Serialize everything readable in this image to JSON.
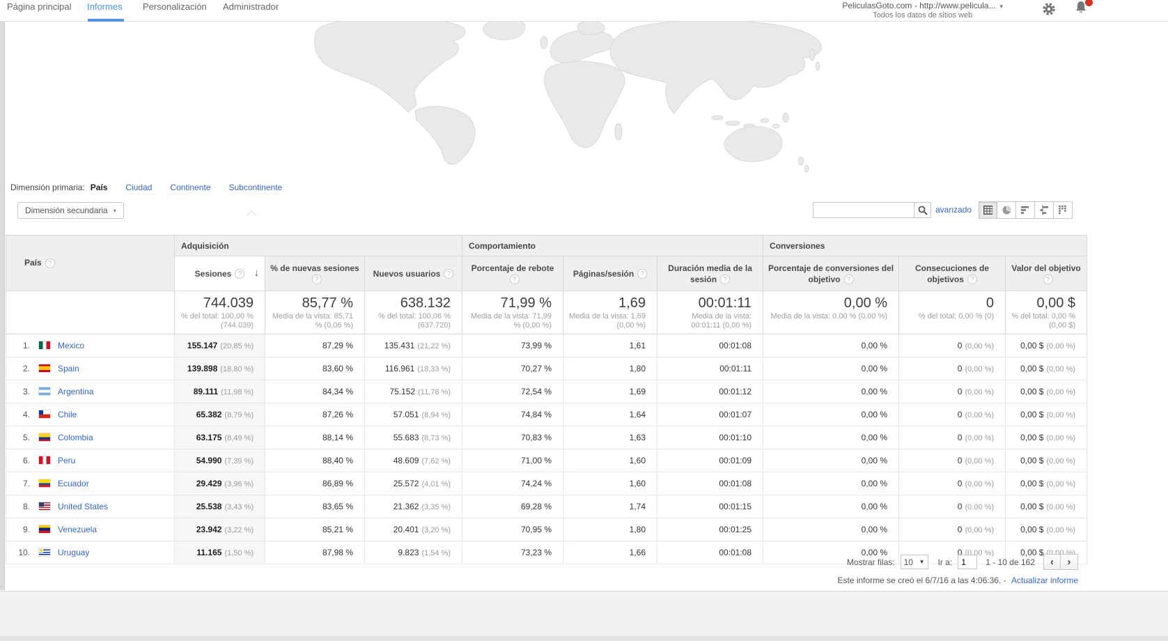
{
  "colors": {
    "accent": "#4d90fe",
    "link": "#3466cc",
    "notification": "#d93025"
  },
  "icons": {
    "help": "?",
    "sort_desc": "↓",
    "caret_down": "▾",
    "select_caret": "▼",
    "prev": "‹",
    "next": "›"
  },
  "nav": {
    "items": [
      {
        "label": "Página principal",
        "active": false
      },
      {
        "label": "Informes",
        "active": true
      },
      {
        "label": "Personalización",
        "active": false
      },
      {
        "label": "Administrador",
        "active": false
      }
    ],
    "account_line1": "PeliculasGoto.com - http://www.pelicula...",
    "account_line2": "Todos los datos de sitios web"
  },
  "dimensions": {
    "primary_label": "Dimensión primaria:",
    "options": [
      {
        "label": "País",
        "selected": true
      },
      {
        "label": "Ciudad",
        "selected": false
      },
      {
        "label": "Continente",
        "selected": false
      },
      {
        "label": "Subcontinente",
        "selected": false
      }
    ],
    "secondary_button": "Dimensión secundaria"
  },
  "toolbar": {
    "advanced_link": "avanzado"
  },
  "table": {
    "groups": [
      "Adquisición",
      "Comportamiento",
      "Conversiones"
    ],
    "columns": [
      "País",
      "Sesiones",
      "% de nuevas sesiones",
      "Nuevos usuarios",
      "Porcentaje de rebote",
      "Páginas/sesión",
      "Duración media de la sesión",
      "Porcentaje de conversiones del objetivo",
      "Consecuciones de objetivos",
      "Valor del objetivo"
    ],
    "totals": {
      "sessions": "744.039",
      "sessions_sub": "% del total: 100,00 % (744.039)",
      "new_sessions": "85,77 %",
      "new_sessions_sub": "Media de la vista: 85,71 % (0,06 %)",
      "new_users": "638.132",
      "new_users_sub": "% del total: 100,06 % (637.720)",
      "bounce": "71,99 %",
      "bounce_sub": "Media de la vista: 71,99 % (0,00 %)",
      "pages": "1,69",
      "pages_sub": "Media de la vista: 1,69 (0,00 %)",
      "duration": "00:01:11",
      "duration_sub": "Media de la vista: 00:01:11 (0,00 %)",
      "conv_rate": "0,00 %",
      "conv_rate_sub": "Media de la vista: 0,00 % (0,00 %)",
      "goals": "0",
      "goals_sub": "% del total: 0,00 % (0)",
      "value": "0,00 $",
      "value_sub": "% del total: 0,00 % (0,00 $)"
    },
    "rows": [
      {
        "rank": "1.",
        "flag": "mx",
        "country": "Mexico",
        "sessions": "155.147",
        "sessions_pct": "(20,85 %)",
        "new_sessions": "87,29 %",
        "new_users": "135.431",
        "new_users_pct": "(21,22 %)",
        "bounce": "73,99 %",
        "pages": "1,61",
        "duration": "00:01:08",
        "conv_rate": "0,00 %",
        "goals": "0",
        "goals_pct": "(0,00 %)",
        "value": "0,00 $",
        "value_pct": "(0,00 %)"
      },
      {
        "rank": "2.",
        "flag": "es",
        "country": "Spain",
        "sessions": "139.898",
        "sessions_pct": "(18,80 %)",
        "new_sessions": "83,60 %",
        "new_users": "116.961",
        "new_users_pct": "(18,33 %)",
        "bounce": "70,27 %",
        "pages": "1,80",
        "duration": "00:01:11",
        "conv_rate": "0,00 %",
        "goals": "0",
        "goals_pct": "(0,00 %)",
        "value": "0,00 $",
        "value_pct": "(0,00 %)"
      },
      {
        "rank": "3.",
        "flag": "ar",
        "country": "Argentina",
        "sessions": "89.111",
        "sessions_pct": "(11,98 %)",
        "new_sessions": "84,34 %",
        "new_users": "75.152",
        "new_users_pct": "(11,78 %)",
        "bounce": "72,54 %",
        "pages": "1,69",
        "duration": "00:01:12",
        "conv_rate": "0,00 %",
        "goals": "0",
        "goals_pct": "(0,00 %)",
        "value": "0,00 $",
        "value_pct": "(0,00 %)"
      },
      {
        "rank": "4.",
        "flag": "cl",
        "country": "Chile",
        "sessions": "65.382",
        "sessions_pct": "(8,79 %)",
        "new_sessions": "87,26 %",
        "new_users": "57.051",
        "new_users_pct": "(8,94 %)",
        "bounce": "74,84 %",
        "pages": "1,64",
        "duration": "00:01:07",
        "conv_rate": "0,00 %",
        "goals": "0",
        "goals_pct": "(0,00 %)",
        "value": "0,00 $",
        "value_pct": "(0,00 %)"
      },
      {
        "rank": "5.",
        "flag": "co",
        "country": "Colombia",
        "sessions": "63.175",
        "sessions_pct": "(8,49 %)",
        "new_sessions": "88,14 %",
        "new_users": "55.683",
        "new_users_pct": "(8,73 %)",
        "bounce": "70,83 %",
        "pages": "1,63",
        "duration": "00:01:10",
        "conv_rate": "0,00 %",
        "goals": "0",
        "goals_pct": "(0,00 %)",
        "value": "0,00 $",
        "value_pct": "(0,00 %)"
      },
      {
        "rank": "6.",
        "flag": "pe",
        "country": "Peru",
        "sessions": "54.990",
        "sessions_pct": "(7,39 %)",
        "new_sessions": "88,40 %",
        "new_users": "48.609",
        "new_users_pct": "(7,62 %)",
        "bounce": "71,00 %",
        "pages": "1,60",
        "duration": "00:01:09",
        "conv_rate": "0,00 %",
        "goals": "0",
        "goals_pct": "(0,00 %)",
        "value": "0,00 $",
        "value_pct": "(0,00 %)"
      },
      {
        "rank": "7.",
        "flag": "ec",
        "country": "Ecuador",
        "sessions": "29.429",
        "sessions_pct": "(3,96 %)",
        "new_sessions": "86,89 %",
        "new_users": "25.572",
        "new_users_pct": "(4,01 %)",
        "bounce": "74,24 %",
        "pages": "1,60",
        "duration": "00:01:08",
        "conv_rate": "0,00 %",
        "goals": "0",
        "goals_pct": "(0,00 %)",
        "value": "0,00 $",
        "value_pct": "(0,00 %)"
      },
      {
        "rank": "8.",
        "flag": "us",
        "country": "United States",
        "sessions": "25.538",
        "sessions_pct": "(3,43 %)",
        "new_sessions": "83,65 %",
        "new_users": "21.362",
        "new_users_pct": "(3,35 %)",
        "bounce": "69,28 %",
        "pages": "1,74",
        "duration": "00:01:15",
        "conv_rate": "0,00 %",
        "goals": "0",
        "goals_pct": "(0,00 %)",
        "value": "0,00 $",
        "value_pct": "(0,00 %)"
      },
      {
        "rank": "9.",
        "flag": "ve",
        "country": "Venezuela",
        "sessions": "23.942",
        "sessions_pct": "(3,22 %)",
        "new_sessions": "85,21 %",
        "new_users": "20.401",
        "new_users_pct": "(3,20 %)",
        "bounce": "70,95 %",
        "pages": "1,80",
        "duration": "00:01:25",
        "conv_rate": "0,00 %",
        "goals": "0",
        "goals_pct": "(0,00 %)",
        "value": "0,00 $",
        "value_pct": "(0,00 %)"
      },
      {
        "rank": "10.",
        "flag": "uy",
        "country": "Uruguay",
        "sessions": "11.165",
        "sessions_pct": "(1,50 %)",
        "new_sessions": "87,98 %",
        "new_users": "9.823",
        "new_users_pct": "(1,54 %)",
        "bounce": "73,23 %",
        "pages": "1,66",
        "duration": "00:01:08",
        "conv_rate": "0,00 %",
        "goals": "0",
        "goals_pct": "(0,00 %)",
        "value": "0,00 $",
        "value_pct": "(0,00 %)"
      }
    ]
  },
  "pagination": {
    "rows_label": "Mostrar filas:",
    "rows_value": "10",
    "goto_label": "Ir a:",
    "goto_value": "1",
    "range": "1 - 10 de 162"
  },
  "footer": {
    "report_note": "Este informe se creó el 6/7/16 a las 4:06:36. -",
    "refresh_link": "Actualizar informe"
  }
}
